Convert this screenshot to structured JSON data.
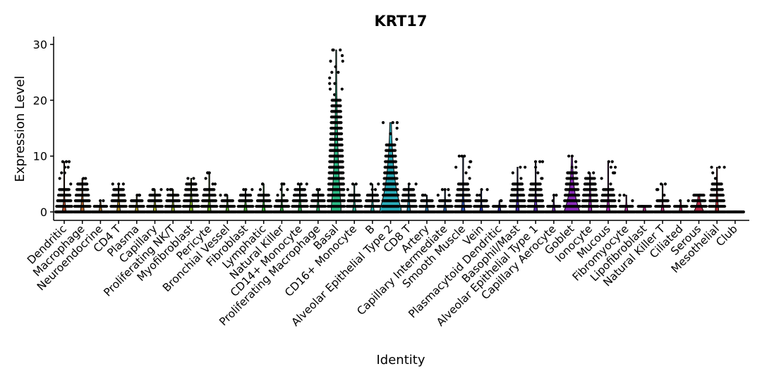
{
  "chart_data": {
    "type": "violin",
    "title": "KRT17",
    "xlabel": "Identity",
    "ylabel": "Expression Level",
    "ylim": [
      0,
      30
    ],
    "yticks": [
      "0",
      "10",
      "20",
      "30"
    ],
    "grid": false,
    "legend": "none",
    "categories": [
      "Dendritic",
      "Macrophage",
      "Neuroendocrine",
      "CD4 T",
      "Plasma",
      "Capillary",
      "Proliferating NK/T",
      "Myofibroblast",
      "Pericyte",
      "Bronchial Vessel",
      "Fibroblast",
      "Lymphatic",
      "Natural Killer",
      "CD14+ Monocyte",
      "Proliferating Macrophage",
      "Basal",
      "CD16+ Monocyte",
      "B",
      "Alveolar Epithelial Type 2",
      "CD8 T",
      "Artery",
      "Capillary Intermediate",
      "Smooth Muscle",
      "Vein",
      "Plasmacytoid Dendritic",
      "Basophil/Mast",
      "Alveolar Epithelial Type 1",
      "Capillary Aerocyte",
      "Goblet",
      "Ionocyte",
      "Mucous",
      "Fibromyocyte",
      "Lipofibroblast",
      "Natural Killer T",
      "Ciliated",
      "Serous",
      "Mesothelial",
      "Club"
    ],
    "max_values": [
      9,
      6,
      2,
      5,
      3,
      4,
      4,
      6,
      7,
      3,
      4,
      5,
      5,
      5,
      4,
      29,
      5,
      5,
      16,
      5,
      3,
      4,
      10,
      4,
      2,
      8,
      9,
      3,
      10,
      7,
      9,
      3,
      1,
      5,
      2,
      3,
      8,
      0
    ],
    "dense_upto": [
      4,
      5,
      1,
      4,
      2,
      3,
      3,
      5,
      4,
      2,
      3,
      3,
      2,
      4,
      3,
      20,
      3,
      3,
      12,
      4,
      2,
      2,
      5,
      2,
      1,
      5,
      5,
      1,
      7,
      6,
      4,
      1,
      1,
      2,
      1,
      3,
      5,
      0
    ],
    "violin_density": [
      0.05,
      0.05,
      0.03,
      0.05,
      0.04,
      0.04,
      0.04,
      0.05,
      0.05,
      0.04,
      0.04,
      0.04,
      0.04,
      0.04,
      0.04,
      0.35,
      0.05,
      0.05,
      0.9,
      0.05,
      0.04,
      0.04,
      0.05,
      0.04,
      0.03,
      0.05,
      0.05,
      0.04,
      0.6,
      0.05,
      0.05,
      0.04,
      0.03,
      0.04,
      0.03,
      0.35,
      0.05,
      0.02
    ]
  }
}
